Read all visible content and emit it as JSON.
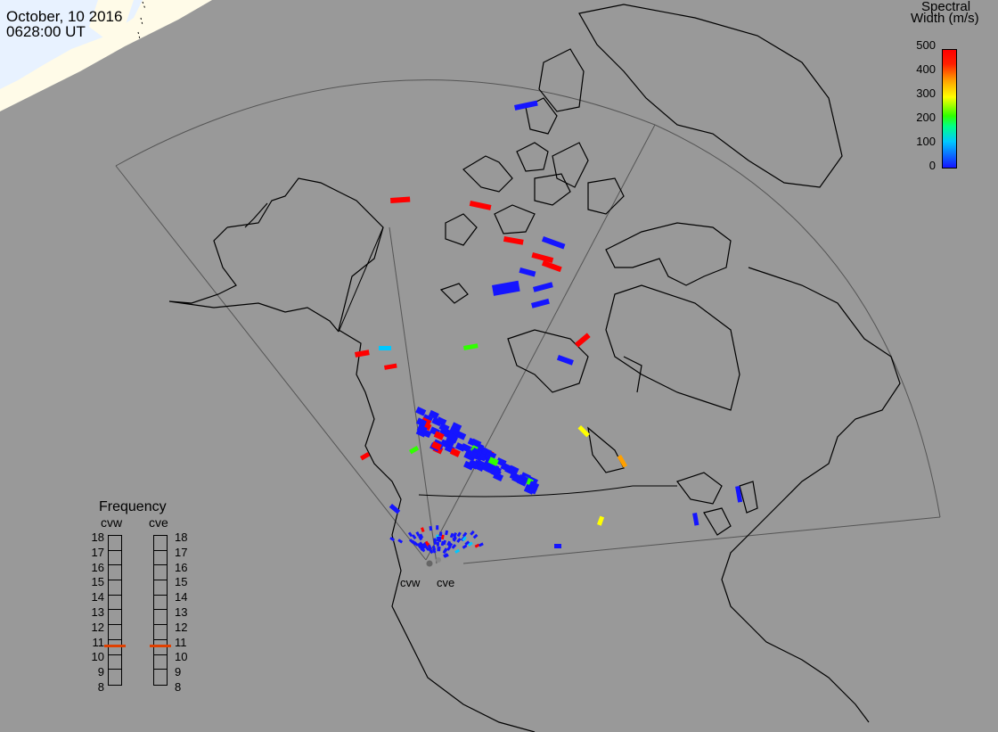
{
  "header": {
    "date": "October, 10 2016",
    "time": "0628:00 UT"
  },
  "colorbar": {
    "title_line1": "Spectral",
    "title_line2": "Width (m/s)",
    "ticks": [
      "500",
      "400",
      "300",
      "200",
      "100",
      "0"
    ],
    "range": [
      0,
      500
    ],
    "colors": [
      "#1515ff",
      "#00c8ff",
      "#30ff00",
      "#ffff00",
      "#ffa000",
      "#ff0000"
    ]
  },
  "frequency": {
    "title": "Frequency",
    "radars": [
      {
        "label": "cvw",
        "selected_mhz": 10.8
      },
      {
        "label": "cve",
        "selected_mhz": 10.8
      }
    ],
    "scale": [
      "18",
      "17",
      "16",
      "15",
      "14",
      "13",
      "12",
      "11",
      "10",
      "9",
      "8"
    ]
  },
  "sites": [
    "cvw",
    "cve"
  ],
  "colors": {
    "background": "#999999",
    "land_line": "#000000",
    "daylight": "#fffbe8",
    "ice": "#e8f2ff"
  }
}
